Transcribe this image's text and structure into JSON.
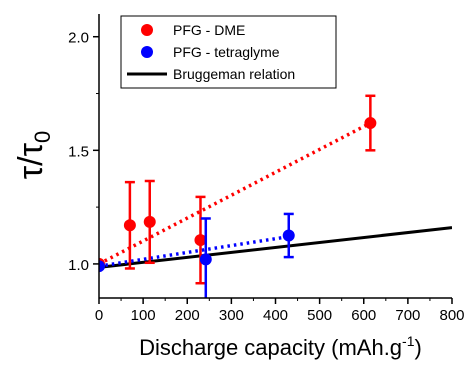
{
  "chart_data": {
    "type": "scatter",
    "xlabel": "Discharge capacity (mAh.g",
    "xlabel_superscript": "-1",
    "xlabel_suffix": ")",
    "ylabel": "τ/τ",
    "ylabel_subscript": "0",
    "xlim": [
      0,
      800
    ],
    "ylim": [
      0.85,
      2.1
    ],
    "xticks": [
      0,
      100,
      200,
      300,
      400,
      500,
      600,
      700,
      800
    ],
    "yticks": [
      1.0,
      1.5,
      2.0
    ],
    "ytick_labels": [
      "1.0",
      "1.5",
      "2.0"
    ],
    "legend_position": "top-center",
    "grid": false,
    "series": [
      {
        "name": "PFG - DME",
        "color": "#ff0000",
        "marker": "circle",
        "points": [
          {
            "x": 0,
            "y": 1.0,
            "err": 0.0
          },
          {
            "x": 70,
            "y": 1.17,
            "err": 0.19
          },
          {
            "x": 115,
            "y": 1.185,
            "err": 0.18
          },
          {
            "x": 230,
            "y": 1.105,
            "err": 0.19
          },
          {
            "x": 615,
            "y": 1.62,
            "err": 0.12
          }
        ],
        "fit": {
          "style": "dotted",
          "x": [
            0,
            615
          ],
          "y": [
            1.0,
            1.62
          ]
        }
      },
      {
        "name": "PFG - tetraglyme",
        "color": "#0000ff",
        "marker": "circle",
        "points": [
          {
            "x": 0,
            "y": 0.99,
            "err": 0.0
          },
          {
            "x": 242,
            "y": 1.02,
            "err": 0.18
          },
          {
            "x": 430,
            "y": 1.125,
            "err": 0.095
          }
        ],
        "fit": {
          "style": "dotted",
          "x": [
            0,
            430
          ],
          "y": [
            0.99,
            1.12
          ]
        }
      },
      {
        "name": "Bruggeman relation",
        "color": "#000000",
        "marker": "none",
        "line": {
          "style": "solid",
          "x": [
            0,
            800
          ],
          "y": [
            0.985,
            1.16
          ]
        }
      }
    ]
  }
}
